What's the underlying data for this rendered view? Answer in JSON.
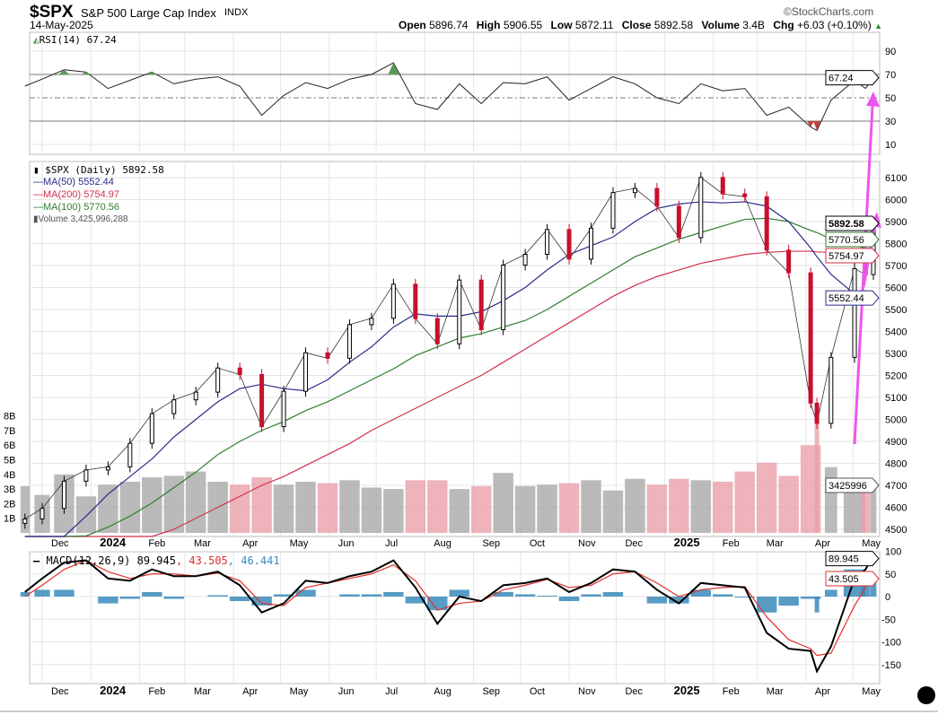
{
  "header": {
    "symbol": "$SPX",
    "name": "S&P 500 Large Cap Index",
    "exchange": "INDX",
    "date": "14-May-2025",
    "brand": "©StockCharts.com",
    "quote": {
      "open_label": "Open",
      "open": "5896.74",
      "high_label": "High",
      "high": "5906.55",
      "low_label": "Low",
      "low": "5872.11",
      "close_label": "Close",
      "close": "5892.58",
      "volume_label": "Volume",
      "volume": "3.4B",
      "chg_label": "Chg",
      "chg": "+6.03 (+0.10%)"
    }
  },
  "legends": {
    "rsi": "RSI(14) 67.24",
    "price": "$SPX (Daily) 5892.58",
    "ma50": "MA(50) 5552.44",
    "ma200": "MA(200) 5754.97",
    "ma100": "MA(100) 5770.56",
    "volume": "Volume 3,425,996,288",
    "macd_main": "MACD(12,26,9) 89.945",
    "macd_signal": ", 43.505",
    "macd_hist": ", 46.441"
  },
  "tags": {
    "rsi": "67.24",
    "close": "5892.58",
    "ma200": "5754.97",
    "ma100": "5770.56",
    "ma50": "5552.44",
    "volume": "3425996",
    "macd": "89.945",
    "signal": "43.505"
  },
  "colors": {
    "ma50": "#2b2b8c",
    "ma200": "#d2304c",
    "ma100": "#2f7d2f",
    "up": "#000000",
    "down": "#c8102e",
    "vol_up": "#a9a9a9",
    "vol_down": "#eaa0aa",
    "hist": "#3a8bbb",
    "signal": "#e0302a",
    "macd": "#000000",
    "annotation": "#ee55ee",
    "rsi_over": "#5a9a5a",
    "rsi_under": "#c04040"
  },
  "chart_data": {
    "type": "candlestick",
    "months": [
      "Dec",
      "2024",
      "Feb",
      "Mar",
      "Apr",
      "May",
      "Jun",
      "Jul",
      "Aug",
      "Sep",
      "Oct",
      "Nov",
      "Dec",
      "2025",
      "Feb",
      "Mar",
      "Apr",
      "May"
    ],
    "month_dates": [
      "2023-12-01",
      "2024-01-01",
      "2024-02-01",
      "2024-03-01",
      "2024-04-01",
      "2024-05-01",
      "2024-06-01",
      "2024-07-01",
      "2024-08-01",
      "2024-09-01",
      "2024-10-01",
      "2024-11-01",
      "2024-12-01",
      "2025-01-01",
      "2025-02-01",
      "2025-03-01",
      "2025-04-01",
      "2025-05-01"
    ],
    "dates": [
      "2023-11-20",
      "2023-12-01",
      "2023-12-15",
      "2023-12-29",
      "2024-01-12",
      "2024-01-26",
      "2024-02-09",
      "2024-02-23",
      "2024-03-08",
      "2024-03-22",
      "2024-04-05",
      "2024-04-19",
      "2024-05-03",
      "2024-05-17",
      "2024-05-31",
      "2024-06-14",
      "2024-06-28",
      "2024-07-12",
      "2024-07-26",
      "2024-08-09",
      "2024-08-23",
      "2024-09-06",
      "2024-09-20",
      "2024-10-04",
      "2024-10-18",
      "2024-11-01",
      "2024-11-15",
      "2024-11-29",
      "2024-12-13",
      "2024-12-27",
      "2025-01-10",
      "2025-01-24",
      "2025-02-07",
      "2025-02-21",
      "2025-03-07",
      "2025-03-21",
      "2025-04-04",
      "2025-04-08",
      "2025-04-17",
      "2025-05-02",
      "2025-05-09",
      "2025-05-14"
    ],
    "close": [
      4547,
      4595,
      4719,
      4770,
      4784,
      4891,
      5026,
      5089,
      5124,
      5234,
      5204,
      4967,
      5128,
      5303,
      5278,
      5431,
      5460,
      5615,
      5459,
      5344,
      5634,
      5408,
      5702,
      5751,
      5864,
      5729,
      5870,
      6032,
      6051,
      5970,
      5827,
      6101,
      6026,
      6013,
      5770,
      5667,
      5074,
      4982,
      5282,
      5686,
      5659,
      5892.58
    ],
    "ma50": [
      4360,
      4390,
      4460,
      4560,
      4660,
      4740,
      4820,
      4920,
      5000,
      5080,
      5140,
      5160,
      5140,
      5130,
      5180,
      5260,
      5330,
      5420,
      5480,
      5470,
      5470,
      5490,
      5540,
      5600,
      5680,
      5750,
      5790,
      5830,
      5900,
      5960,
      5980,
      5990,
      5985,
      5990,
      5970,
      5900,
      5780,
      5740,
      5660,
      5570,
      5550,
      5552.44
    ],
    "ma100": [
      4380,
      4400,
      4430,
      4470,
      4510,
      4560,
      4620,
      4690,
      4760,
      4840,
      4900,
      4950,
      4990,
      5040,
      5080,
      5130,
      5180,
      5230,
      5290,
      5330,
      5370,
      5390,
      5420,
      5450,
      5500,
      5560,
      5620,
      5680,
      5740,
      5780,
      5820,
      5850,
      5880,
      5910,
      5915,
      5900,
      5860,
      5850,
      5820,
      5790,
      5780,
      5770.56
    ],
    "ma200": [
      4330,
      4340,
      4360,
      4380,
      4400,
      4430,
      4460,
      4500,
      4550,
      4600,
      4650,
      4700,
      4740,
      4790,
      4840,
      4890,
      4950,
      5000,
      5050,
      5100,
      5150,
      5200,
      5260,
      5320,
      5380,
      5440,
      5500,
      5560,
      5610,
      5650,
      5680,
      5710,
      5730,
      5750,
      5760,
      5765,
      5765,
      5762,
      5760,
      5757,
      5756,
      5754.97
    ],
    "volume_b": [
      3.2,
      2.6,
      4.0,
      2.5,
      3.3,
      3.5,
      3.8,
      3.9,
      4.2,
      3.5,
      3.3,
      3.8,
      3.3,
      3.5,
      3.4,
      3.6,
      3.1,
      3.0,
      3.6,
      3.6,
      3.0,
      3.2,
      4.1,
      3.2,
      3.3,
      3.4,
      3.6,
      2.9,
      3.7,
      3.3,
      3.7,
      3.6,
      3.5,
      4.2,
      4.8,
      3.9,
      6.0,
      8.0,
      4.5,
      3.4,
      3.3,
      3.43
    ],
    "rsi": [
      60,
      66,
      74,
      72,
      58,
      65,
      72,
      62,
      66,
      68,
      60,
      35,
      52,
      63,
      58,
      66,
      70,
      80,
      45,
      40,
      62,
      45,
      63,
      62,
      68,
      48,
      58,
      68,
      62,
      50,
      45,
      62,
      56,
      58,
      35,
      42,
      25,
      22,
      48,
      65,
      58,
      67.24
    ],
    "macd": [
      10,
      40,
      75,
      80,
      40,
      35,
      60,
      45,
      45,
      55,
      25,
      -35,
      -15,
      35,
      30,
      45,
      55,
      80,
      20,
      -60,
      0,
      -10,
      25,
      30,
      40,
      10,
      30,
      60,
      55,
      15,
      -15,
      30,
      25,
      20,
      -80,
      -115,
      -120,
      -165,
      -110,
      40,
      60,
      89.945
    ],
    "signal": [
      0,
      25,
      60,
      80,
      55,
      40,
      50,
      50,
      45,
      52,
      35,
      -15,
      -20,
      20,
      30,
      40,
      50,
      70,
      35,
      -30,
      -15,
      -10,
      15,
      25,
      38,
      20,
      25,
      50,
      55,
      30,
      0,
      15,
      20,
      22,
      -45,
      -95,
      -115,
      -130,
      -125,
      -20,
      20,
      43.505
    ],
    "price_ticks": [
      6100,
      6000,
      5900,
      5800,
      5700,
      5600,
      5500,
      5400,
      5300,
      5200,
      5100,
      5000,
      4900,
      4800,
      4700,
      4600,
      4500
    ],
    "volume_ticks": [
      "8B",
      "7B",
      "6B",
      "5B",
      "4B",
      "3B",
      "2B",
      "1B"
    ],
    "rsi_ticks": [
      90,
      70,
      50,
      30,
      10
    ],
    "macd_ticks": [
      100,
      50,
      0,
      -50,
      -100,
      -150
    ],
    "ylim_price": [
      4500,
      6150
    ],
    "ylim_rsi": [
      0,
      100
    ],
    "grid": true
  }
}
